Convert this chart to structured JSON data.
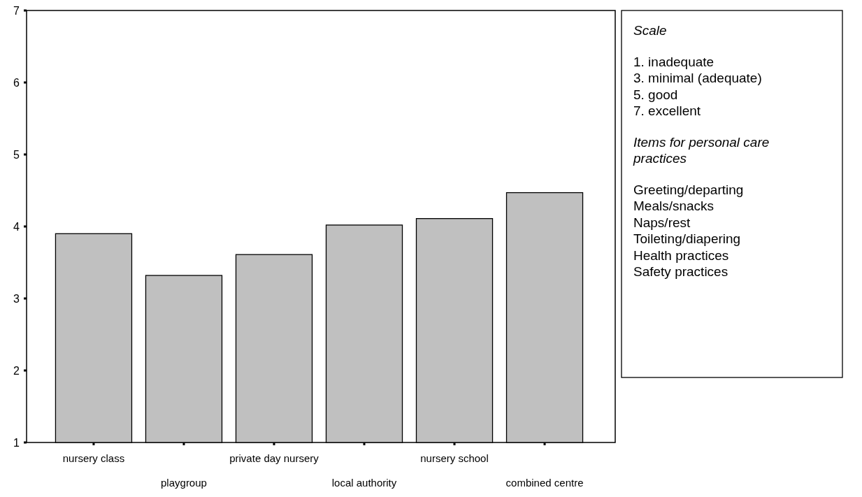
{
  "chart_data": {
    "type": "bar",
    "categories": [
      "nursery class",
      "playgroup",
      "private day nursery",
      "local authority",
      "nursery school",
      "combined centre"
    ],
    "values": [
      3.9,
      3.32,
      3.61,
      4.02,
      4.11,
      4.47
    ],
    "color": "#c0c0c0",
    "ylim": [
      1,
      7
    ],
    "yticks": [
      1,
      2,
      3,
      4,
      5,
      6,
      7
    ],
    "grid": false,
    "annotations": [
      "Scale",
      "1.  inadequate",
      "3.  minimal (adequate)",
      "5.  good",
      "7.  excellent",
      "Items for personal care practices",
      "Greeting/departing",
      "Meals/snacks",
      "Naps/rest",
      "Toileting/diapering",
      "Health practices",
      "Safety practices"
    ]
  }
}
